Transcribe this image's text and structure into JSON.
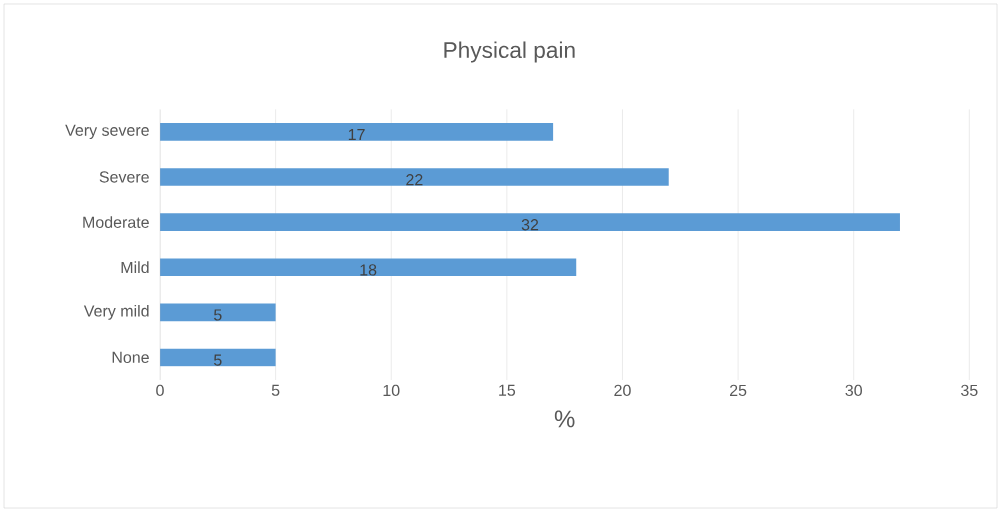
{
  "chart_data": {
    "type": "bar",
    "orientation": "horizontal",
    "title": "Physical pain",
    "xlabel": "%",
    "categories": [
      "Very severe",
      "Severe",
      "Moderate",
      "Mild",
      "Very mild",
      "None"
    ],
    "values": [
      17,
      22,
      32,
      18,
      5,
      5
    ],
    "color": "#5b9bd5",
    "xlim": [
      0,
      35
    ],
    "xticks": [
      0,
      5,
      10,
      15,
      20,
      25,
      30,
      35
    ],
    "grid": "x",
    "data_labels": true
  }
}
